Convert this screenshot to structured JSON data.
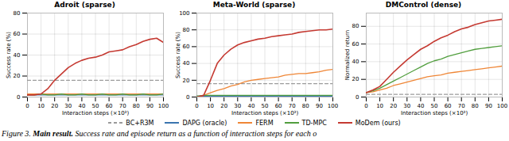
{
  "chart_data": [
    {
      "type": "line",
      "title": "Adroit (sparse)",
      "x_label": "Interaction steps (×10³)",
      "y_label": "Success rate (%)",
      "x": [
        0,
        5,
        10,
        15,
        20,
        25,
        30,
        35,
        40,
        45,
        50,
        55,
        60,
        65,
        70,
        75,
        80,
        85,
        90,
        95,
        100
      ],
      "xlim": [
        0,
        100
      ],
      "xticks": [
        0,
        10,
        20,
        30,
        40,
        50,
        60,
        70,
        80,
        90,
        100
      ],
      "ylim": [
        0,
        80
      ],
      "yticks": [
        0,
        20,
        40,
        60,
        80
      ],
      "grid": true,
      "series": [
        {
          "name": "BC+R3M",
          "color": "#9a9a9a",
          "line_style": "dashed",
          "values": [
            16,
            16,
            16,
            16,
            16,
            16,
            16,
            16,
            16,
            16,
            16,
            16,
            16,
            16,
            16,
            16,
            16,
            16,
            16,
            16,
            16
          ]
        },
        {
          "name": "DAPG (oracle)",
          "color": "#3b75af",
          "values": [
            2,
            2,
            2,
            2,
            2,
            2,
            2,
            2,
            2,
            2,
            2,
            2,
            2,
            2,
            2,
            2,
            2,
            2,
            2,
            2,
            2
          ]
        },
        {
          "name": "FERM",
          "color": "#ef8636",
          "values": [
            3,
            3,
            3,
            3,
            3,
            3,
            3,
            3,
            3,
            3,
            3,
            3,
            3,
            3,
            3,
            3,
            3,
            3,
            3,
            3,
            3
          ]
        },
        {
          "name": "TD-MPC",
          "color": "#519e3e",
          "values": [
            2,
            2,
            3,
            2,
            2,
            3,
            2,
            2,
            3,
            2,
            2,
            3,
            2,
            2,
            3,
            2,
            2,
            3,
            2,
            2,
            3
          ]
        },
        {
          "name": "MoDem (ours)",
          "color": "#c53a32",
          "values": [
            2,
            2,
            3,
            8,
            16,
            22,
            28,
            32,
            35,
            37,
            38,
            40,
            43,
            44,
            45,
            48,
            50,
            53,
            55,
            56,
            52
          ]
        }
      ]
    },
    {
      "type": "line",
      "title": "Meta-World (sparse)",
      "x_label": "Interaction steps (×10³)",
      "y_label": "Success rate (%)",
      "x": [
        0,
        5,
        10,
        15,
        20,
        25,
        30,
        35,
        40,
        45,
        50,
        55,
        60,
        65,
        70,
        75,
        80,
        85,
        90,
        95,
        100
      ],
      "xlim": [
        0,
        100
      ],
      "xticks": [
        0,
        10,
        20,
        30,
        40,
        50,
        60,
        70,
        80,
        90,
        100
      ],
      "ylim": [
        0,
        100
      ],
      "yticks": [
        0,
        20,
        40,
        60,
        80,
        100
      ],
      "grid": true,
      "series": [
        {
          "name": "BC+R3M",
          "color": "#9a9a9a",
          "line_style": "dashed",
          "values": [
            16,
            16,
            16,
            16,
            16,
            16,
            16,
            16,
            16,
            16,
            16,
            16,
            16,
            16,
            16,
            16,
            16,
            16,
            16,
            16,
            16
          ]
        },
        {
          "name": "DAPG (oracle)",
          "color": "#3b75af",
          "values": [
            1,
            1,
            1,
            1,
            1,
            1,
            1,
            1,
            1,
            1,
            1,
            1,
            1,
            1,
            1,
            1,
            1,
            1,
            1,
            1,
            1
          ]
        },
        {
          "name": "FERM",
          "color": "#ef8636",
          "values": [
            0,
            2,
            5,
            8,
            10,
            13,
            15,
            18,
            20,
            21,
            22,
            23,
            24,
            26,
            27,
            28,
            28,
            29,
            30,
            32,
            33
          ]
        },
        {
          "name": "TD-MPC",
          "color": "#519e3e",
          "values": [
            1,
            2,
            2,
            2,
            2,
            2,
            2,
            2,
            2,
            2,
            2,
            2,
            2,
            2,
            2,
            2,
            2,
            2,
            2,
            2,
            2
          ]
        },
        {
          "name": "MoDem (ours)",
          "color": "#c53a32",
          "values": [
            0,
            2,
            20,
            40,
            50,
            57,
            62,
            65,
            67,
            69,
            70,
            72,
            73,
            74,
            75,
            77,
            78,
            79,
            80,
            80,
            81
          ]
        }
      ]
    },
    {
      "type": "line",
      "title": "DMControl (dense)",
      "x_label": "Interaction steps (×10³)",
      "y_label": "Normalized return",
      "x": [
        0,
        5,
        10,
        15,
        20,
        25,
        30,
        35,
        40,
        45,
        50,
        55,
        60,
        65,
        70,
        75,
        80,
        85,
        90,
        95,
        100
      ],
      "xlim": [
        0,
        100
      ],
      "xticks": [
        0,
        10,
        20,
        30,
        40,
        50,
        60,
        70,
        80,
        90,
        100
      ],
      "ylim": [
        0,
        95
      ],
      "yticks": [
        0,
        20,
        40,
        60,
        80
      ],
      "grid": true,
      "series": [
        {
          "name": "BC+R3M",
          "color": "#9a9a9a",
          "line_style": "dashed",
          "values": [
            3,
            3,
            3,
            3,
            3,
            3,
            3,
            3,
            3,
            3,
            3,
            3,
            3,
            3,
            3,
            3,
            3,
            3,
            3,
            3,
            3
          ]
        },
        {
          "name": "FERM",
          "color": "#ef8636",
          "values": [
            5,
            6,
            8,
            10,
            13,
            15,
            17,
            19,
            21,
            23,
            24,
            25,
            27,
            28,
            29,
            30,
            31,
            32,
            33,
            34,
            35
          ]
        },
        {
          "name": "TD-MPC",
          "color": "#519e3e",
          "values": [
            5,
            7,
            10,
            14,
            18,
            22,
            26,
            30,
            34,
            38,
            41,
            43,
            46,
            48,
            50,
            52,
            54,
            55,
            56,
            57,
            58
          ]
        },
        {
          "name": "MoDem (ours)",
          "color": "#c53a32",
          "values": [
            5,
            8,
            12,
            20,
            28,
            35,
            42,
            48,
            54,
            58,
            63,
            67,
            70,
            74,
            77,
            79,
            82,
            84,
            86,
            87,
            88
          ]
        }
      ]
    }
  ],
  "caption": {
    "label": "Figure 3.",
    "title": "Main result.",
    "text": "Success rate and episode return as a function of interaction steps for each o"
  }
}
